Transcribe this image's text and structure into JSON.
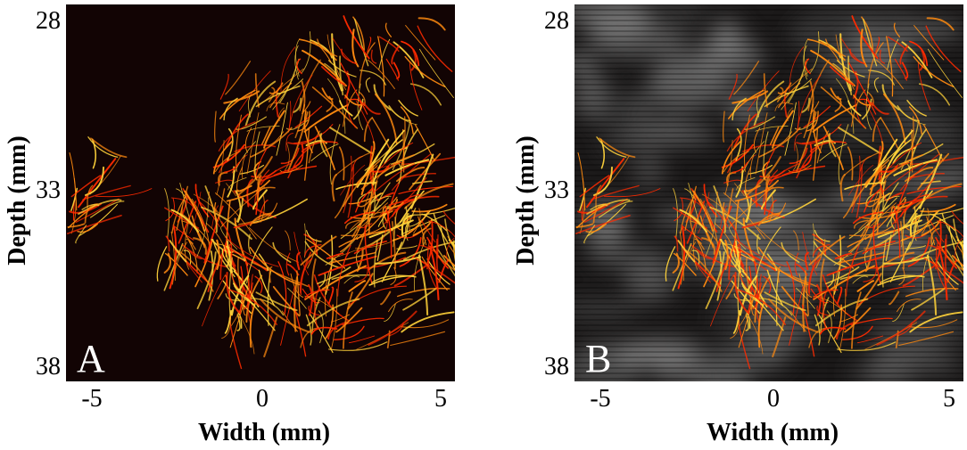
{
  "figure": {
    "panels": [
      {
        "id": "A",
        "letter": "A",
        "background": "#120404",
        "has_bmode_overlay": false,
        "x_label": "Width  (mm)",
        "y_label": "Depth (mm)",
        "x_ticks": [
          "-5",
          "0",
          "5"
        ],
        "y_ticks": [
          "28",
          "33",
          "38"
        ]
      },
      {
        "id": "B",
        "letter": "B",
        "background": "#1a1413",
        "has_bmode_overlay": true,
        "x_label": "Width  (mm)",
        "y_label": "Depth (mm)",
        "x_ticks": [
          "-5",
          "0",
          "5"
        ],
        "y_ticks": [
          "28",
          "33",
          "38"
        ]
      }
    ],
    "colors": {
      "vessel_hot": "#ff2a00",
      "vessel_bright": "#ffd23a",
      "vessel_mid": "#ff8a10"
    }
  }
}
